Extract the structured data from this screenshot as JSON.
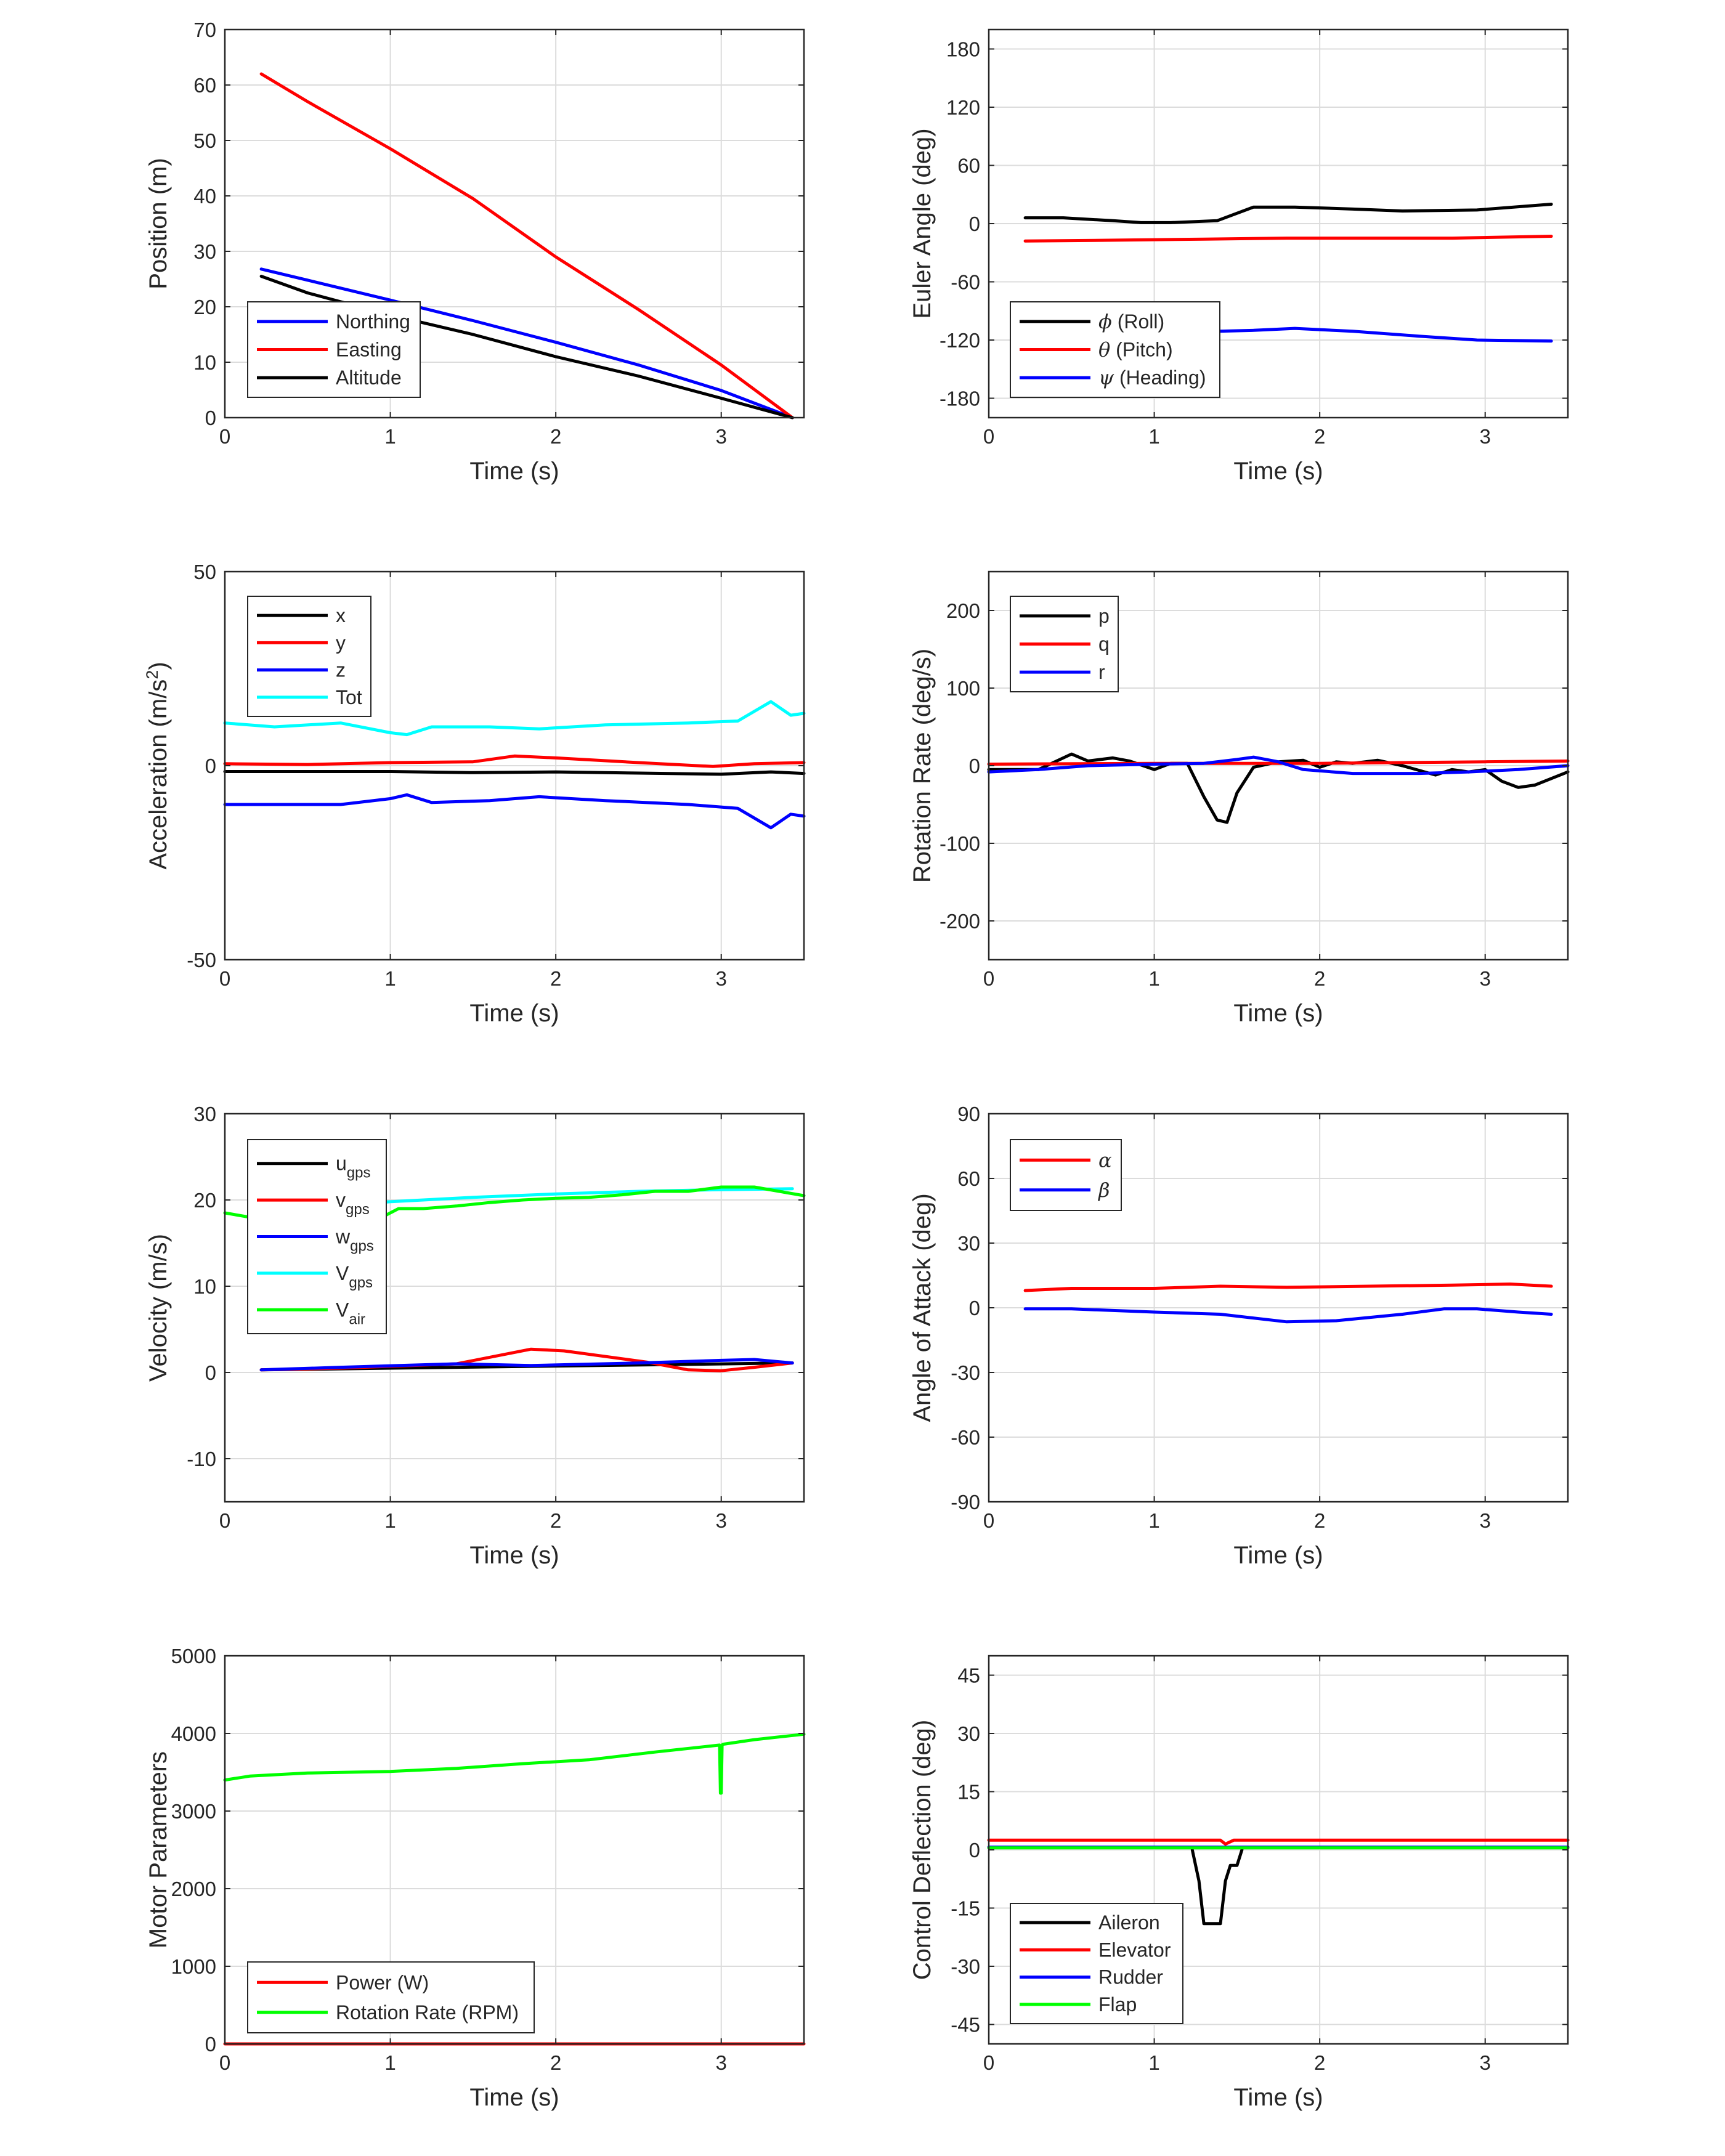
{
  "chart_data": [
    {
      "type": "line",
      "xlabel": "Time (s)",
      "ylabel": "Position (m)",
      "xlim": [
        0,
        3.5
      ],
      "ylim": [
        0,
        70
      ],
      "xticks": [
        "0",
        "1",
        "2",
        "3"
      ],
      "yticks": [
        "0",
        "10",
        "20",
        "30",
        "40",
        "50",
        "60",
        "70"
      ],
      "grid": true,
      "legend_loc": "bottom-left",
      "series": [
        {
          "name": "Northing",
          "color": "#0000ff",
          "x": [
            0.22,
            0.5,
            1.0,
            1.5,
            2.0,
            2.5,
            3.0,
            3.43
          ],
          "y": [
            26.8,
            24.8,
            21.2,
            17.5,
            13.6,
            9.5,
            4.9,
            0
          ]
        },
        {
          "name": "Easting",
          "color": "#ff0000",
          "x": [
            0.22,
            0.5,
            1.0,
            1.5,
            2.0,
            2.5,
            3.0,
            3.43
          ],
          "y": [
            62,
            57,
            48.5,
            39.5,
            29,
            19.5,
            9.5,
            0
          ]
        },
        {
          "name": "Altitude",
          "color": "#000000",
          "x": [
            0.22,
            0.5,
            1.0,
            1.5,
            2.0,
            2.5,
            3.0,
            3.43
          ],
          "y": [
            25.5,
            22.5,
            18.5,
            15,
            11,
            7.5,
            3.5,
            0
          ]
        }
      ]
    },
    {
      "type": "line",
      "xlabel": "Time (s)",
      "ylabel": "Euler Angle (deg)",
      "xlim": [
        0,
        3.5
      ],
      "ylim": [
        -200,
        200
      ],
      "xticks": [
        "0",
        "1",
        "2",
        "3"
      ],
      "yticks": [
        "-180",
        "-120",
        "-60",
        "0",
        "60",
        "120",
        "180"
      ],
      "ytick_values": [
        -180,
        -120,
        -60,
        0,
        60,
        120,
        180
      ],
      "grid": true,
      "legend_loc": "bottom-left",
      "series": [
        {
          "name": "ϕ (Roll)",
          "color": "#000000",
          "x": [
            0.22,
            0.45,
            0.75,
            0.92,
            1.1,
            1.38,
            1.6,
            1.85,
            2.2,
            2.5,
            2.95,
            3.4
          ],
          "y": [
            6,
            6,
            3,
            1,
            1,
            3,
            17,
            17,
            15,
            13,
            14,
            20
          ]
        },
        {
          "name": "θ (Pitch)",
          "color": "#ff0000",
          "x": [
            0.22,
            0.8,
            1.3,
            1.8,
            2.3,
            2.8,
            3.4
          ],
          "y": [
            -18,
            -17,
            -16,
            -15,
            -15,
            -15,
            -13
          ]
        },
        {
          "name": "ψ (Heading)",
          "color": "#0000ff",
          "x": [
            1.38,
            1.6,
            1.85,
            2.2,
            2.6,
            2.95,
            3.4
          ],
          "y": [
            -111,
            -110,
            -108,
            -111,
            -116,
            -120,
            -121
          ]
        }
      ]
    },
    {
      "type": "line",
      "xlabel": "Time (s)",
      "ylabel": "Acceleration (m/s²)",
      "xlim": [
        0,
        3.5
      ],
      "ylim": [
        -50,
        50
      ],
      "xticks": [
        "0",
        "1",
        "2",
        "3"
      ],
      "yticks": [
        "-50",
        "0",
        "50"
      ],
      "grid": true,
      "legend_loc": "top-left",
      "series": [
        {
          "name": "x",
          "color": "#000000",
          "x": [
            0,
            0.5,
            1,
            1.5,
            2,
            2.5,
            3,
            3.3,
            3.5
          ],
          "y": [
            -1.5,
            -1.5,
            -1.5,
            -1.8,
            -1.6,
            -1.9,
            -2.2,
            -1.6,
            -2
          ]
        },
        {
          "name": "y",
          "color": "#ff0000",
          "x": [
            0,
            0.5,
            1,
            1.5,
            1.75,
            2,
            2.5,
            2.95,
            3.2,
            3.5
          ],
          "y": [
            0.5,
            0.3,
            0.8,
            1,
            2.5,
            2,
            0.8,
            -0.2,
            0.5,
            0.8
          ]
        },
        {
          "name": "z",
          "color": "#0000ff",
          "x": [
            0,
            0.3,
            0.7,
            1,
            1.1,
            1.25,
            1.6,
            1.9,
            2.3,
            2.8,
            3.1,
            3.3,
            3.42,
            3.5
          ],
          "y": [
            -10,
            -10,
            -10,
            -8.5,
            -7.5,
            -9.5,
            -9,
            -8,
            -9,
            -10,
            -11,
            -16,
            -12.5,
            -13
          ]
        },
        {
          "name": "Tot",
          "color": "#00ffff",
          "x": [
            0,
            0.3,
            0.7,
            1,
            1.1,
            1.25,
            1.6,
            1.9,
            2.3,
            2.8,
            3.1,
            3.3,
            3.42,
            3.5
          ],
          "y": [
            11,
            10,
            11,
            8.5,
            8,
            10,
            10,
            9.5,
            10.5,
            11,
            11.5,
            16.5,
            13,
            13.5
          ]
        }
      ]
    },
    {
      "type": "line",
      "xlabel": "Time (s)",
      "ylabel": "Rotation Rate (deg/s)",
      "xlim": [
        0,
        3.5
      ],
      "ylim": [
        -250,
        250
      ],
      "xticks": [
        "0",
        "1",
        "2",
        "3"
      ],
      "yticks": [
        "-200",
        "-100",
        "0",
        "100",
        "200"
      ],
      "ytick_values": [
        -200,
        -100,
        0,
        100,
        200
      ],
      "grid": true,
      "legend_loc": "top-left",
      "series": [
        {
          "name": "p",
          "color": "#000000",
          "x": [
            0,
            0.2,
            0.3,
            0.45,
            0.5,
            0.6,
            0.75,
            0.85,
            1.0,
            1.1,
            1.2,
            1.3,
            1.38,
            1.44,
            1.5,
            1.6,
            1.75,
            1.9,
            2.0,
            2.1,
            2.2,
            2.35,
            2.5,
            2.7,
            2.8,
            2.9,
            3.0,
            3.1,
            3.2,
            3.3,
            3.5
          ],
          "y": [
            -5,
            -5,
            -5,
            10,
            15,
            6,
            10,
            6,
            -5,
            3,
            3,
            -40,
            -70,
            -73,
            -35,
            -2,
            5,
            7,
            -2,
            5,
            3,
            7,
            0,
            -12,
            -5,
            -8,
            -5,
            -20,
            -28,
            -25,
            -8
          ]
        },
        {
          "name": "q",
          "color": "#ff0000",
          "x": [
            0,
            1,
            2,
            3,
            3.5
          ],
          "y": [
            2,
            3,
            3,
            5,
            6
          ]
        },
        {
          "name": "r",
          "color": "#0000ff",
          "x": [
            0,
            0.3,
            0.6,
            1.0,
            1.3,
            1.5,
            1.6,
            1.75,
            1.9,
            2.2,
            2.6,
            2.9,
            3.2,
            3.5
          ],
          "y": [
            -8,
            -5,
            0,
            2,
            3,
            8,
            11,
            5,
            -5,
            -10,
            -10,
            -8,
            -5,
            0
          ]
        }
      ]
    },
    {
      "type": "line",
      "xlabel": "Time (s)",
      "ylabel": "Velocity (m/s)",
      "xlim": [
        0,
        3.5
      ],
      "ylim": [
        -15,
        30
      ],
      "xticks": [
        "0",
        "1",
        "2",
        "3"
      ],
      "yticks": [
        "-10",
        "0",
        "10",
        "20",
        "30"
      ],
      "grid": true,
      "legend_loc": "top-left",
      "series": [
        {
          "name": "u_gps",
          "color": "#000000",
          "x": [
            0.22,
            3.43
          ],
          "y": [
            0.3,
            1.1
          ]
        },
        {
          "name": "v_gps",
          "color": "#ff0000",
          "x": [
            0.22,
            0.7,
            1.4,
            1.85,
            2.05,
            2.55,
            2.8,
            3.0,
            3.2,
            3.43
          ],
          "y": [
            0.3,
            0.5,
            1.0,
            2.7,
            2.5,
            1.2,
            0.3,
            0.2,
            0.6,
            1.1
          ]
        },
        {
          "name": "w_gps",
          "color": "#0000ff",
          "x": [
            0.22,
            0.7,
            1.4,
            1.85,
            2.5,
            3.0,
            3.2,
            3.43
          ],
          "y": [
            0.3,
            0.6,
            1.0,
            0.8,
            1.1,
            1.4,
            1.5,
            1.1
          ]
        },
        {
          "name": "V_gps",
          "color": "#00ffff",
          "x": [
            0.22,
            0.7,
            1.0,
            1.5,
            2.0,
            2.5,
            3.0,
            3.43
          ],
          "y": [
            18.5,
            19.3,
            19.8,
            20.3,
            20.7,
            21.0,
            21.2,
            21.3
          ]
        },
        {
          "name": "V_air",
          "color": "#00ff00",
          "x": [
            0,
            0.15,
            0.3,
            0.5,
            0.7,
            0.85,
            0.95,
            1.05,
            1.2,
            1.4,
            1.6,
            1.8,
            2.0,
            2.2,
            2.4,
            2.6,
            2.8,
            3.0,
            3.2,
            3.35,
            3.5
          ],
          "y": [
            18.5,
            18,
            18.3,
            18.5,
            18.8,
            18.3,
            18,
            19,
            19,
            19.3,
            19.7,
            20,
            20.2,
            20.3,
            20.6,
            21,
            21,
            21.5,
            21.5,
            21,
            20.5
          ]
        }
      ]
    },
    {
      "type": "line",
      "xlabel": "Time (s)",
      "ylabel": "Angle of Attack (deg)",
      "xlim": [
        0,
        3.5
      ],
      "ylim": [
        -90,
        90
      ],
      "xticks": [
        "0",
        "1",
        "2",
        "3"
      ],
      "yticks": [
        "-90",
        "-60",
        "-30",
        "0",
        "30",
        "60",
        "90"
      ],
      "grid": true,
      "legend_loc": "top-left",
      "series": [
        {
          "name": "α",
          "color": "#ff0000",
          "x": [
            0.22,
            0.5,
            1.0,
            1.4,
            1.8,
            2.3,
            2.8,
            3.15,
            3.4
          ],
          "y": [
            8,
            9,
            9,
            10,
            9.5,
            10,
            10.5,
            11,
            10
          ]
        },
        {
          "name": "β",
          "color": "#0000ff",
          "x": [
            0.22,
            0.5,
            1.0,
            1.4,
            1.8,
            2.1,
            2.5,
            2.75,
            2.95,
            3.2,
            3.4
          ],
          "y": [
            -0.5,
            -0.5,
            -2,
            -3,
            -6.5,
            -6,
            -3,
            -0.5,
            -0.5,
            -2,
            -3
          ]
        }
      ]
    },
    {
      "type": "line",
      "xlabel": "Time (s)",
      "ylabel": "Motor Parameters",
      "xlim": [
        0,
        3.5
      ],
      "ylim": [
        0,
        5000
      ],
      "xticks": [
        "0",
        "1",
        "2",
        "3"
      ],
      "yticks": [
        "0",
        "1000",
        "2000",
        "3000",
        "4000",
        "5000"
      ],
      "grid": true,
      "legend_loc": "bottom-left",
      "series": [
        {
          "name": "Power (W)",
          "color": "#ff0000",
          "x": [
            0,
            3.5
          ],
          "y": [
            0,
            0
          ]
        },
        {
          "name": "Rotation Rate (RPM)",
          "color": "#00ff00",
          "x": [
            0,
            0.15,
            0.5,
            1.0,
            1.4,
            1.8,
            2.2,
            2.6,
            2.99,
            2.995,
            3.0,
            3.005,
            3.01,
            3.2,
            3.5
          ],
          "y": [
            3400,
            3450,
            3490,
            3510,
            3550,
            3610,
            3660,
            3760,
            3850,
            3230,
            3230,
            3850,
            3860,
            3920,
            3990
          ]
        }
      ]
    },
    {
      "type": "line",
      "xlabel": "Time (s)",
      "ylabel": "Control Deflection (deg)",
      "xlim": [
        0,
        3.5
      ],
      "ylim": [
        -50,
        50
      ],
      "xticks": [
        "0",
        "1",
        "2",
        "3"
      ],
      "yticks": [
        "-45",
        "-30",
        "-15",
        "0",
        "15",
        "30",
        "45"
      ],
      "ytick_values": [
        -45,
        -30,
        -15,
        0,
        15,
        30,
        45
      ],
      "grid": true,
      "legend_loc": "bottom-left",
      "series": [
        {
          "name": "Aileron",
          "color": "#000000",
          "x": [
            1.23,
            1.27,
            1.3,
            1.4,
            1.43,
            1.46,
            1.5,
            1.53
          ],
          "y": [
            0,
            -8,
            -19,
            -19,
            -8,
            -4,
            -4,
            0
          ]
        },
        {
          "name": "Elevator",
          "color": "#ff0000",
          "x": [
            0,
            1.4,
            1.43,
            1.48,
            3.5
          ],
          "y": [
            2.5,
            2.5,
            1.5,
            2.5,
            2.5
          ]
        },
        {
          "name": "Rudder",
          "color": "#0000ff",
          "x": [
            0,
            3.5
          ],
          "y": [
            0.7,
            0.7
          ]
        },
        {
          "name": "Flap",
          "color": "#00ff00",
          "x": [
            0,
            3.5
          ],
          "y": [
            0.5,
            0.5
          ]
        }
      ]
    }
  ]
}
